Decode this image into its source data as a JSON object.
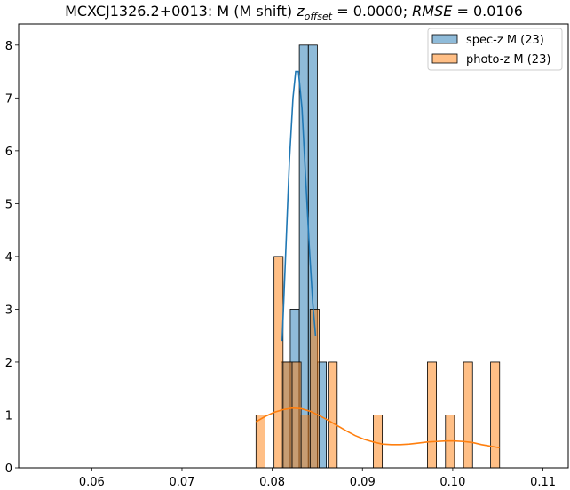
{
  "chart_data": {
    "type": "histogram",
    "title": {
      "prefix": "MCXCJ1326.2+0013: M (M shift) ",
      "z_symbol": "z",
      "z_subscript": "offset",
      "z_value": " = 0.0000; ",
      "rmse_symbol": "RMSE",
      "rmse_value": " = 0.0106"
    },
    "xlabel": "",
    "ylabel": "",
    "xlim": [
      0.0519,
      0.1128
    ],
    "ylim": [
      0,
      8.4
    ],
    "xticks": [
      0.06,
      0.07,
      0.08,
      0.09,
      0.1,
      0.11
    ],
    "xtick_labels": [
      "0.06",
      "0.07",
      "0.08",
      "0.09",
      "0.10",
      "0.11"
    ],
    "yticks": [
      0,
      1,
      2,
      3,
      4,
      5,
      6,
      7,
      8
    ],
    "ytick_labels": [
      "0",
      "1",
      "2",
      "3",
      "4",
      "5",
      "6",
      "7",
      "8"
    ],
    "grid": false,
    "legend_position": "top-right",
    "colors": {
      "spec_fill": "#1f77b4",
      "photo_fill": "#ff7f0e",
      "spec_line": "#1f77b4",
      "photo_line": "#ff7f0e"
    },
    "series": [
      {
        "name": "spec-z M (23)",
        "kind": "histogram",
        "bins": [
          {
            "x0": 0.081,
            "x1": 0.082,
            "count": 2
          },
          {
            "x0": 0.082,
            "x1": 0.083,
            "count": 3
          },
          {
            "x0": 0.083,
            "x1": 0.084,
            "count": 8
          },
          {
            "x0": 0.084,
            "x1": 0.085,
            "count": 8
          },
          {
            "x0": 0.085,
            "x1": 0.086,
            "count": 2
          }
        ],
        "kde": [
          [
            0.0811,
            2.4
          ],
          [
            0.0815,
            4.1
          ],
          [
            0.0819,
            5.8
          ],
          [
            0.0823,
            7.0
          ],
          [
            0.0826,
            7.5
          ],
          [
            0.0829,
            7.5
          ],
          [
            0.0833,
            6.8
          ],
          [
            0.0837,
            5.5
          ],
          [
            0.0841,
            4.2
          ],
          [
            0.0845,
            3.1
          ],
          [
            0.0848,
            2.5
          ]
        ]
      },
      {
        "name": "photo-z M (23)",
        "kind": "histogram",
        "bins": [
          {
            "x0": 0.0782,
            "x1": 0.0792,
            "count": 1
          },
          {
            "x0": 0.0802,
            "x1": 0.0812,
            "count": 4
          },
          {
            "x0": 0.0812,
            "x1": 0.0822,
            "count": 2
          },
          {
            "x0": 0.0822,
            "x1": 0.0832,
            "count": 2
          },
          {
            "x0": 0.0832,
            "x1": 0.0842,
            "count": 1
          },
          {
            "x0": 0.0842,
            "x1": 0.0852,
            "count": 3
          },
          {
            "x0": 0.0862,
            "x1": 0.0872,
            "count": 2
          },
          {
            "x0": 0.0912,
            "x1": 0.0922,
            "count": 1
          },
          {
            "x0": 0.0972,
            "x1": 0.0982,
            "count": 2
          },
          {
            "x0": 0.0992,
            "x1": 0.1002,
            "count": 1
          },
          {
            "x0": 0.1012,
            "x1": 0.1022,
            "count": 2
          },
          {
            "x0": 0.1042,
            "x1": 0.1052,
            "count": 2
          }
        ],
        "kde": [
          [
            0.0782,
            0.87
          ],
          [
            0.0792,
            0.97
          ],
          [
            0.0802,
            1.05
          ],
          [
            0.0812,
            1.1
          ],
          [
            0.0822,
            1.13
          ],
          [
            0.0832,
            1.12
          ],
          [
            0.0842,
            1.07
          ],
          [
            0.0852,
            0.99
          ],
          [
            0.0862,
            0.9
          ],
          [
            0.0872,
            0.8
          ],
          [
            0.0882,
            0.7
          ],
          [
            0.0892,
            0.61
          ],
          [
            0.0902,
            0.54
          ],
          [
            0.0912,
            0.49
          ],
          [
            0.0922,
            0.45
          ],
          [
            0.0932,
            0.44
          ],
          [
            0.0942,
            0.44
          ],
          [
            0.0952,
            0.45
          ],
          [
            0.0962,
            0.47
          ],
          [
            0.0972,
            0.49
          ],
          [
            0.0982,
            0.5
          ],
          [
            0.0992,
            0.51
          ],
          [
            0.1002,
            0.51
          ],
          [
            0.1012,
            0.5
          ],
          [
            0.1022,
            0.48
          ],
          [
            0.1032,
            0.44
          ],
          [
            0.1042,
            0.41
          ],
          [
            0.1052,
            0.38
          ]
        ]
      }
    ]
  }
}
